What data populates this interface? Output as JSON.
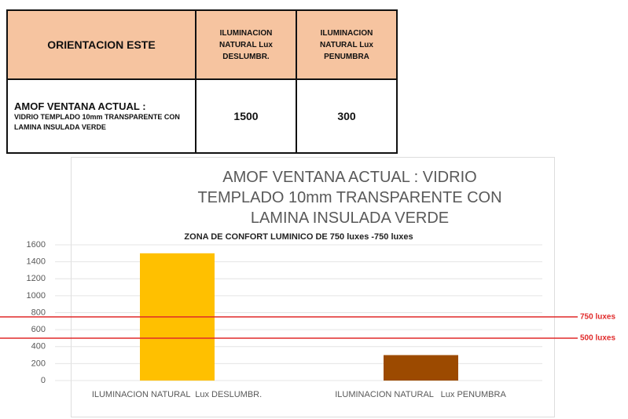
{
  "table": {
    "header": [
      "ORIENTACION ESTE",
      "ILUMINACION NATURAL Lux DESLUMBR.",
      "ILUMINACION NATURAL Lux PENUMBRA"
    ],
    "rows": [
      [
        {
          "heading": "AMOF VENTANA ACTUAL :",
          "detail": "VIDRIO TEMPLADO 10mm TRANSPARENTE CON LAMINA INSULADA VERDE"
        },
        1500,
        300
      ]
    ]
  },
  "chart_data": {
    "type": "bar",
    "title": "AMOF VENTANA ACTUAL :  VIDRIO TEMPLADO 10mm TRANSPARENTE CON LAMINA INSULADA VERDE",
    "subtitle": "ZONA DE CONFORT LUMINICO DE 750 luxes -750 luxes",
    "categories": [
      "ILUMINACION NATURAL  Lux DESLUMBR.",
      "ILUMINACION NATURAL   Lux PENUMBRA"
    ],
    "values": [
      1500,
      300
    ],
    "colors": [
      "#ffc000",
      "#9c4a00"
    ],
    "ylim": [
      0,
      1600
    ],
    "yticks": [
      0,
      200,
      400,
      600,
      800,
      1000,
      1200,
      1400,
      1600
    ],
    "grid": true,
    "reference_lines": [
      {
        "value": 750,
        "label": "750 luxes"
      },
      {
        "value": 500,
        "label": "500 luxes"
      }
    ],
    "reference_color": "#e02a2a"
  }
}
